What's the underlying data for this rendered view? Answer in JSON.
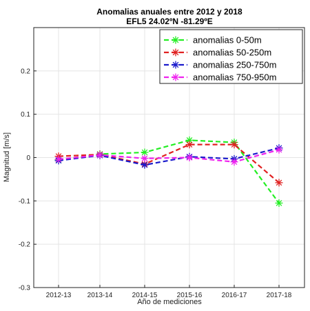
{
  "chart_data": {
    "type": "line",
    "title": "Anomalias anuales entre 2012 y 2018",
    "subtitle": "EFL5  24.02ºN  -81.29ºE",
    "xlabel": "Año de mediciones",
    "ylabel": "Magnitud [m/s]",
    "categories": [
      "2012-13",
      "2013-14",
      "2014-15",
      "2015-16",
      "2016-17",
      "2017-18"
    ],
    "ylim": [
      -0.3,
      0.3
    ],
    "yticks": [
      -0.3,
      -0.2,
      -0.1,
      0,
      0.1,
      0.2
    ],
    "grid": true,
    "legend_position": "top-right",
    "series": [
      {
        "name": "anomalias 0-50m",
        "color": "#22ee22",
        "values": [
          -0.005,
          0.008,
          0.012,
          0.04,
          0.035,
          -0.105
        ]
      },
      {
        "name": "anomalias 50-250m",
        "color": "#e02020",
        "values": [
          0.003,
          0.007,
          -0.015,
          0.03,
          0.03,
          -0.058
        ]
      },
      {
        "name": "anomalias 250-750m",
        "color": "#1a1acc",
        "values": [
          -0.007,
          0.005,
          -0.017,
          0.002,
          -0.003,
          0.022
        ]
      },
      {
        "name": "anomalias 750-950m",
        "color": "#ee22ee",
        "values": [
          -0.004,
          0.006,
          -0.002,
          0.0,
          -0.01,
          0.018
        ]
      }
    ]
  }
}
